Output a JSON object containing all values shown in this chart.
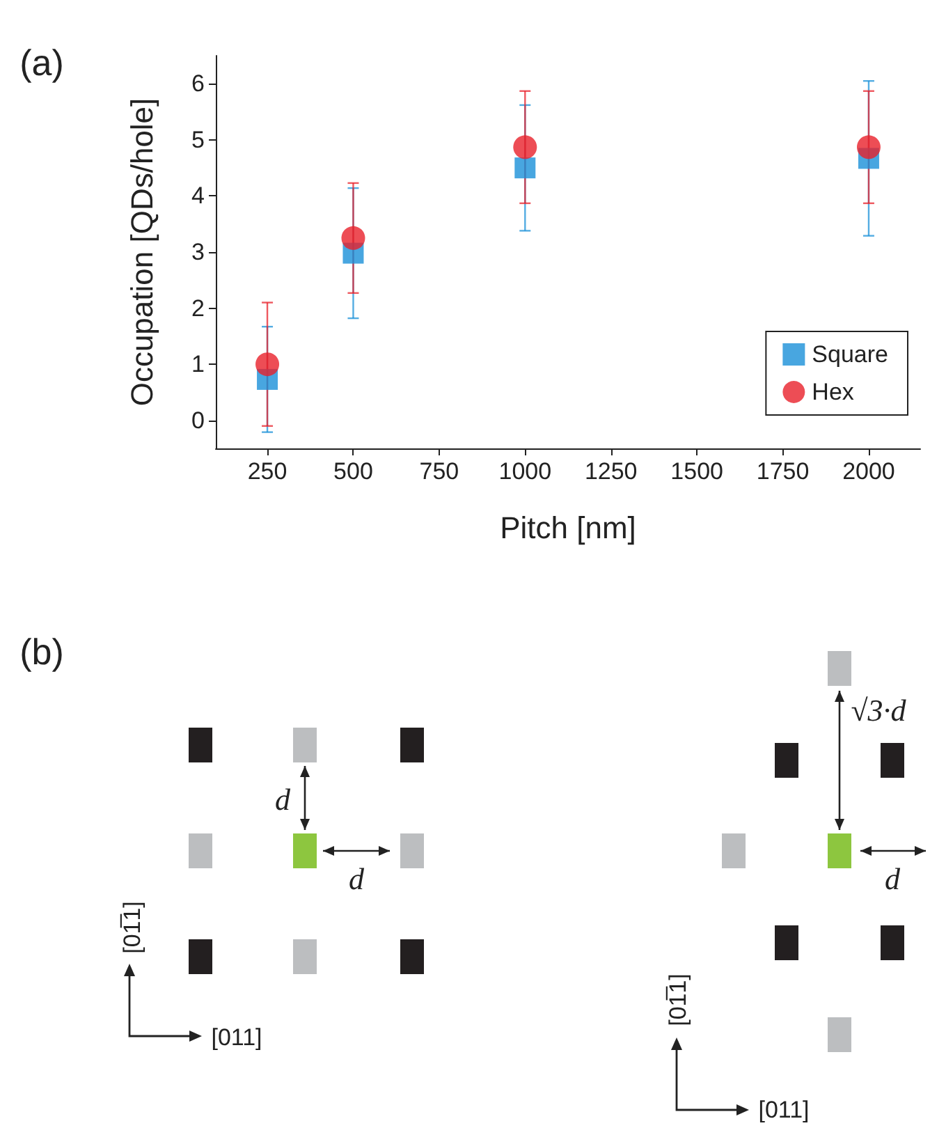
{
  "chart_data": {
    "type": "scatter",
    "xlabel": "Pitch [nm]",
    "ylabel": "Occupation [QDs/hole]",
    "x": [
      250,
      500,
      1000,
      2000
    ],
    "series": [
      {
        "name": "Square",
        "color": "#1a90d8",
        "marker": "square",
        "values": [
          0.73,
          2.98,
          4.5,
          4.67
        ],
        "errors": [
          0.94,
          1.16,
          1.12,
          1.38
        ]
      },
      {
        "name": "Hex",
        "color": "#e8202a",
        "marker": "circle",
        "values": [
          1.0,
          3.25,
          4.87,
          4.87
        ],
        "errors": [
          1.1,
          0.98,
          1.0,
          1.0
        ]
      }
    ],
    "xlim": [
      100,
      2150
    ],
    "xticks": [
      250,
      500,
      750,
      1000,
      1250,
      1500,
      1750,
      2000
    ],
    "ylim": [
      -0.5,
      6.5
    ],
    "yticks": [
      0,
      1,
      2,
      3,
      4,
      5,
      6
    ],
    "grid": false,
    "legend": "bottom right",
    "annotations": [
      "(a)",
      "(b)",
      "d",
      "d",
      "√3·d",
      "d",
      "[011]",
      "[01̅1]",
      "[011]",
      "[01̅1]"
    ]
  }
}
